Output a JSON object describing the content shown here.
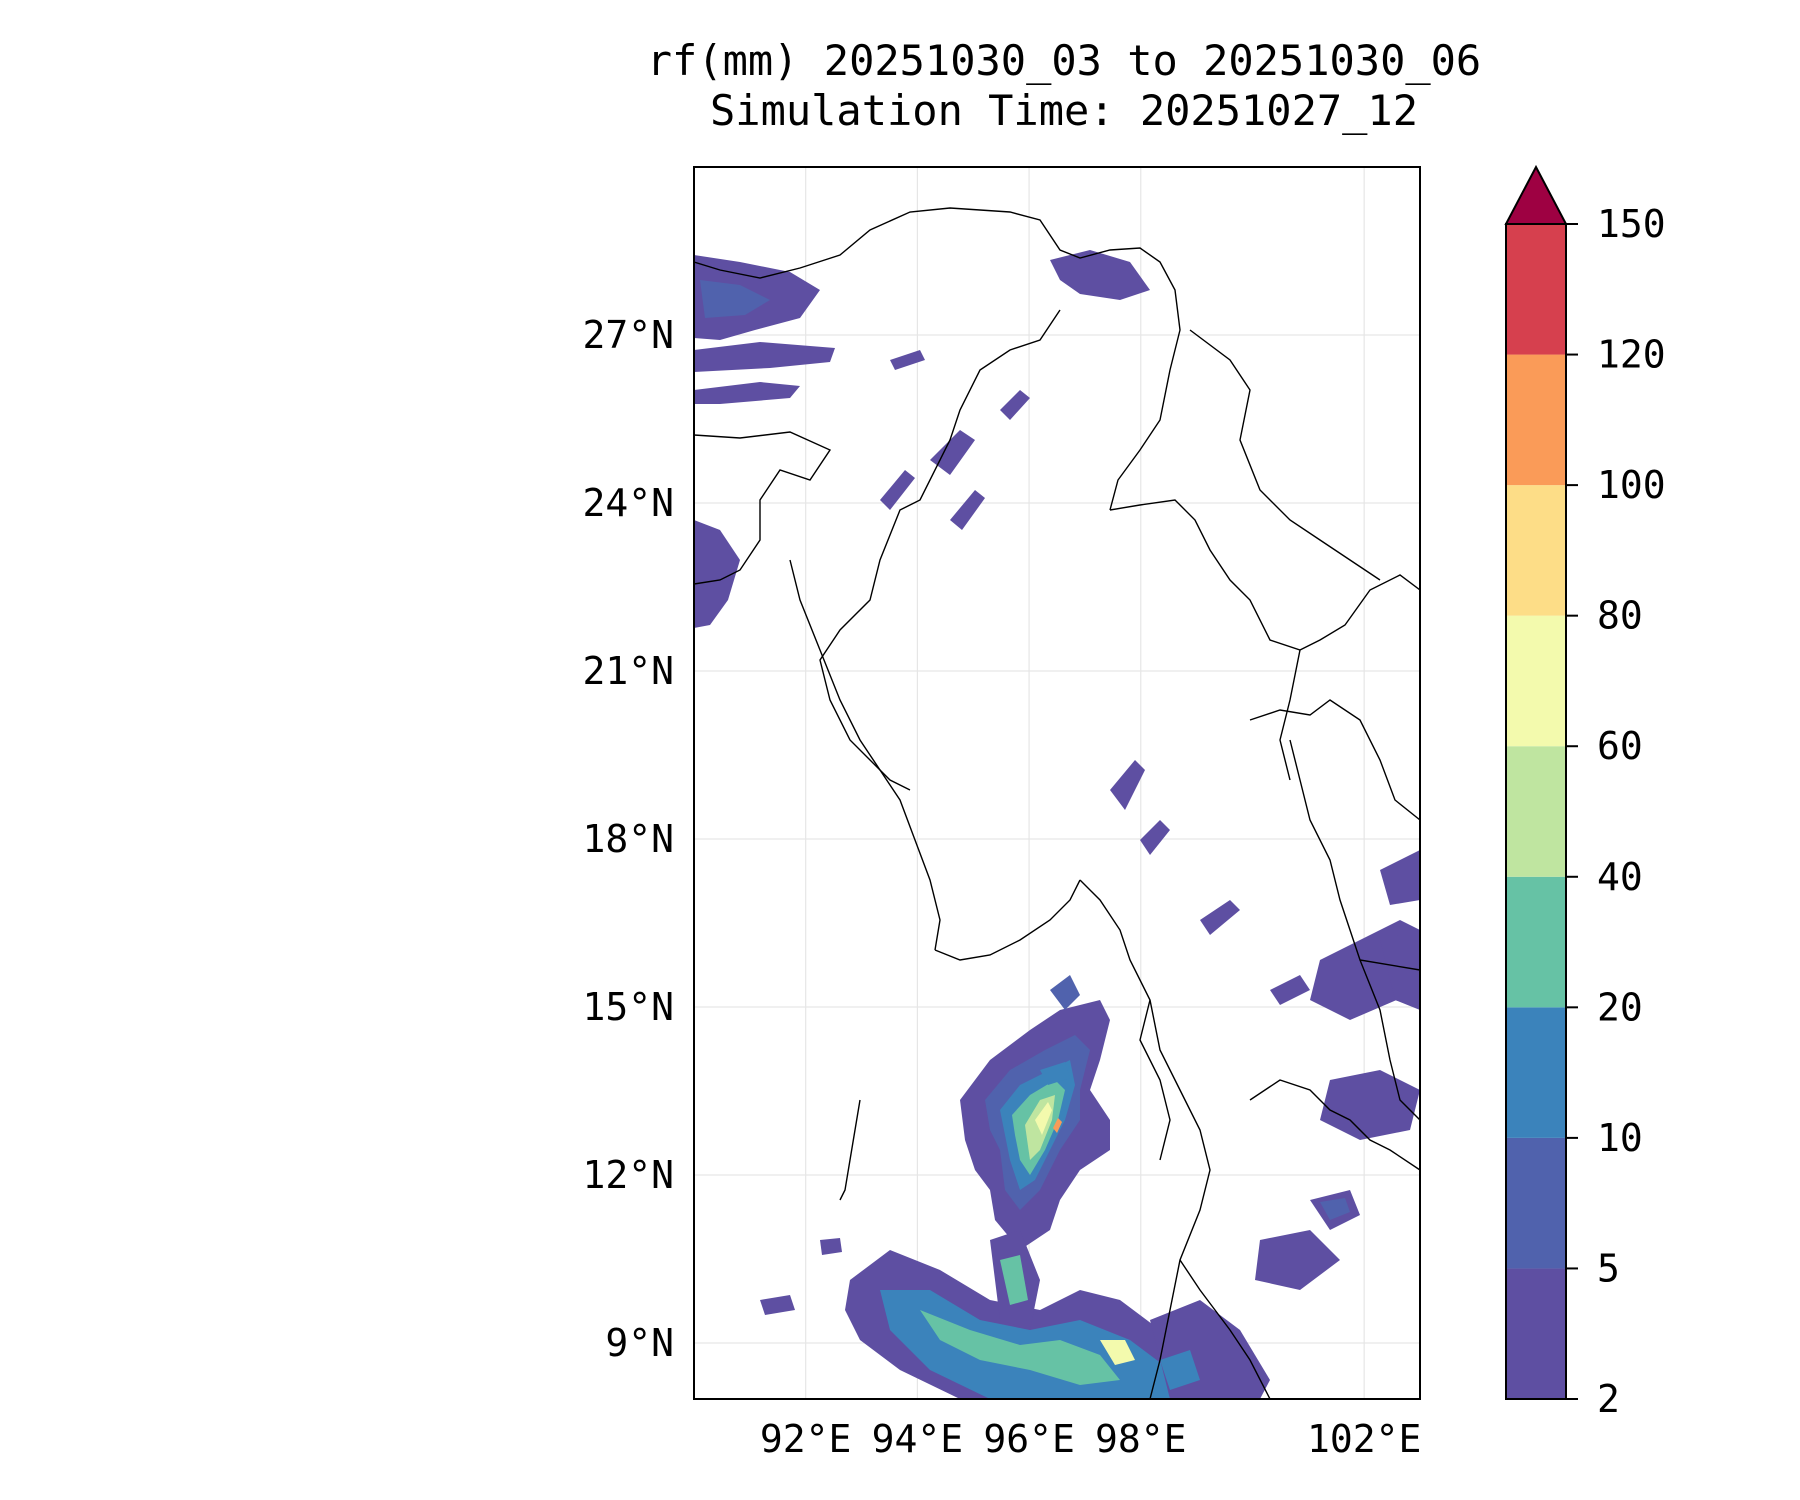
{
  "title": {
    "line1": "rf(mm) 20251030_03 to 20251030_06",
    "line2": "Simulation Time: 20251027_12"
  },
  "map": {
    "lon_labels": [
      "92°E",
      "94°E",
      "96°E",
      "98°E",
      "102°E"
    ],
    "lat_labels": [
      "27°N",
      "24°N",
      "21°N",
      "18°N",
      "15°N",
      "12°N",
      "9°N"
    ],
    "gridlines": true
  },
  "colorbar": {
    "levels": [
      "2",
      "5",
      "10",
      "20",
      "40",
      "60",
      "80",
      "100",
      "120",
      "150"
    ],
    "colors": [
      "#5e4fa2",
      "#5062ad",
      "#3b83bb",
      "#66c2a5",
      "#bfe5a0",
      "#f3faad",
      "#fddd87",
      "#fa9b58",
      "#d6404e",
      "#9e0142"
    ],
    "extend": "max"
  },
  "chart_data": {
    "type": "heatmap",
    "title": "rf(mm) 20251030_03 to 20251030_06",
    "subtitle": "Simulation Time: 20251027_12",
    "variable": "rf(mm)",
    "xlim": [
      90,
      103
    ],
    "ylim": [
      8,
      30
    ],
    "x_ticks": [
      92,
      94,
      96,
      98,
      102
    ],
    "y_ticks": [
      27,
      24,
      21,
      18,
      15,
      12,
      9
    ],
    "colorbar_levels": [
      2,
      5,
      10,
      20,
      40,
      60,
      80,
      100,
      120,
      150
    ],
    "colorbar_extend": "max",
    "grid": true
  }
}
